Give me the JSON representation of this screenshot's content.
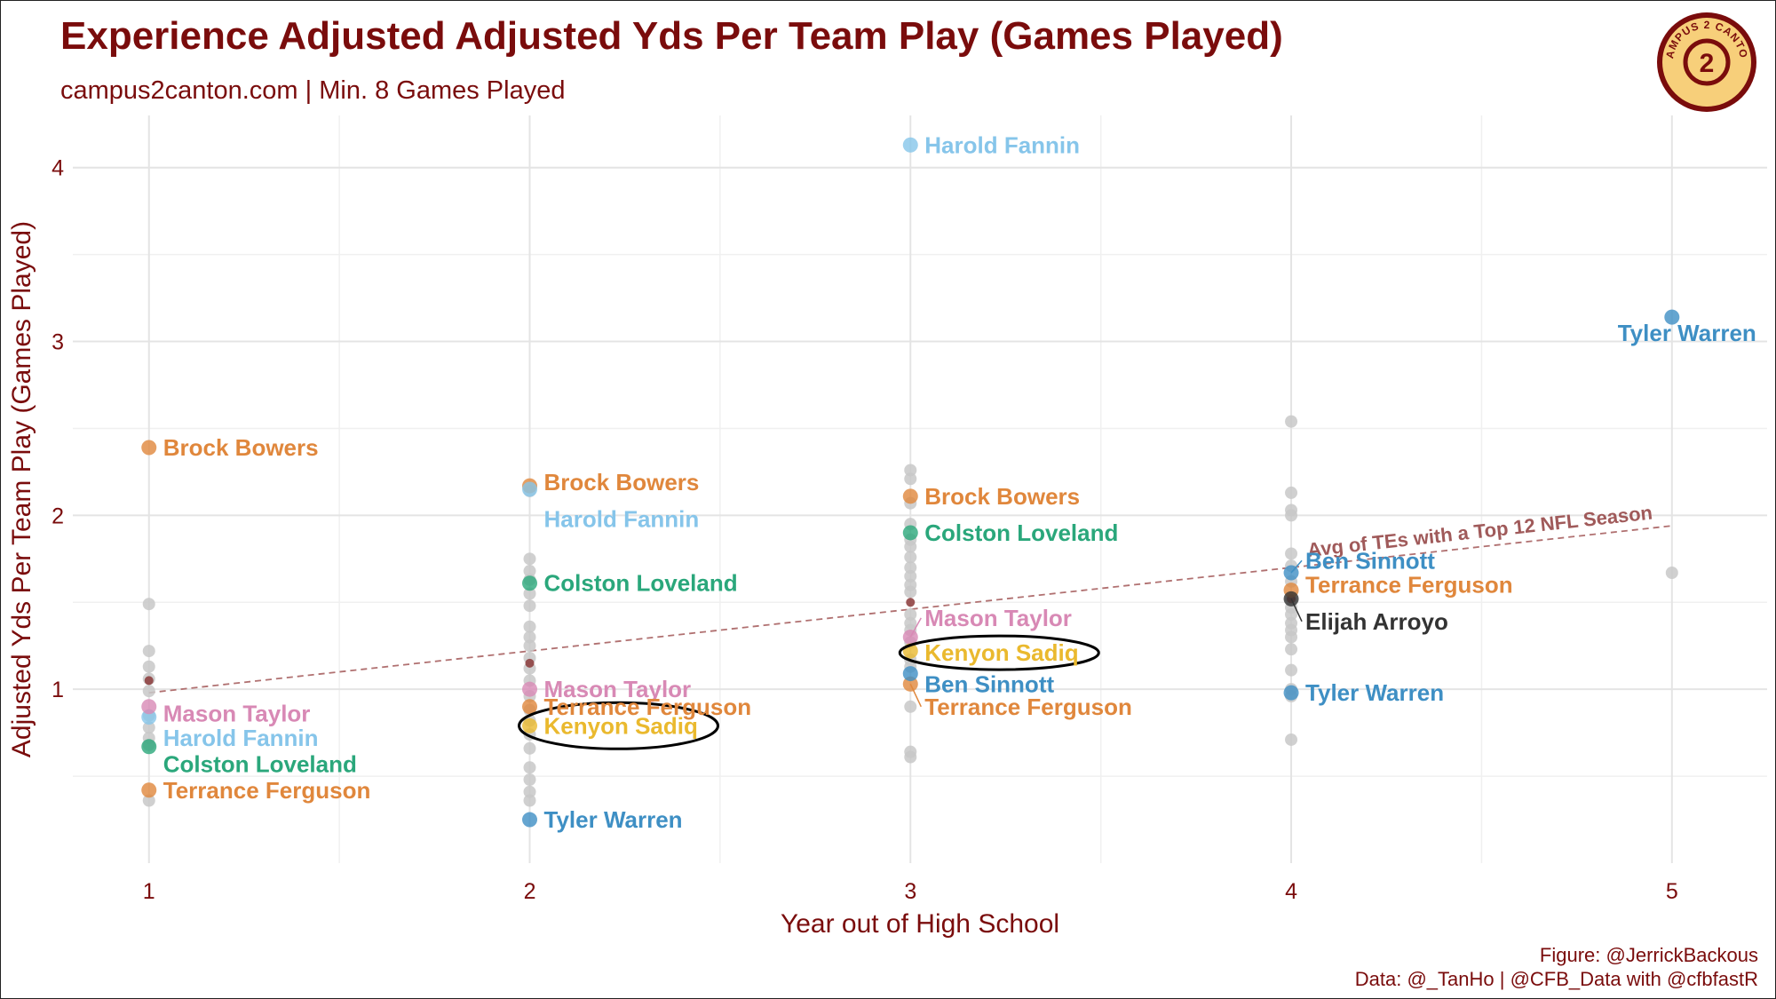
{
  "title": "Experience Adjusted Adjusted Yds Per Team Play (Games Played)",
  "subtitle": "campus2canton.com | Min. 8 Games Played",
  "caption_line1": "Figure: @JerrickBackous",
  "caption_line2": "Data: @_TanHo | @CFB_Data with @cfbfastR",
  "logo_text": "CAMPUS 2 CANTON",
  "colors": {
    "title": "#7a0c0c",
    "background_points": "#c8c8c8",
    "trend": "#b07070",
    "logo_fill": "#f7cf7a",
    "logo_ring": "#7a0c0c",
    "players": {
      "Brock Bowers": "#e0873c",
      "Harold Fannin": "#86c5ea",
      "Colston Loveland": "#2aa77b",
      "Mason Taylor": "#d889b5",
      "Terrance Ferguson": "#e0873c",
      "Kenyon Sadiq": "#eab92e",
      "Tyler Warren": "#3e8fc4",
      "Ben Sinnott": "#3e8fc4",
      "Elijah Arroyo": "#333333"
    }
  },
  "chart_data": {
    "type": "scatter",
    "title": "Experience Adjusted Adjusted Yds Per Team Play (Games Played)",
    "xlabel": "Year out of High School",
    "ylabel": "Adjusted Yds Per Team Play (Games Played)",
    "xlim": [
      0.8,
      5.25
    ],
    "ylim": [
      0.0,
      4.3
    ],
    "xticks": [
      1,
      2,
      3,
      4,
      5
    ],
    "yticks": [
      1,
      2,
      3,
      4
    ],
    "grid": true,
    "background_points": [
      {
        "x": 1,
        "y": 1.49
      },
      {
        "x": 1,
        "y": 1.22
      },
      {
        "x": 1,
        "y": 1.13
      },
      {
        "x": 1,
        "y": 1.06
      },
      {
        "x": 1,
        "y": 0.99
      },
      {
        "x": 1,
        "y": 0.85
      },
      {
        "x": 1,
        "y": 0.78
      },
      {
        "x": 1,
        "y": 0.72
      },
      {
        "x": 1,
        "y": 0.68
      },
      {
        "x": 1,
        "y": 0.36
      },
      {
        "x": 2,
        "y": 2.14
      },
      {
        "x": 2,
        "y": 1.75
      },
      {
        "x": 2,
        "y": 1.68
      },
      {
        "x": 2,
        "y": 1.63
      },
      {
        "x": 2,
        "y": 1.55
      },
      {
        "x": 2,
        "y": 1.48
      },
      {
        "x": 2,
        "y": 1.36
      },
      {
        "x": 2,
        "y": 1.3
      },
      {
        "x": 2,
        "y": 1.25
      },
      {
        "x": 2,
        "y": 1.18
      },
      {
        "x": 2,
        "y": 1.12
      },
      {
        "x": 2,
        "y": 1.05
      },
      {
        "x": 2,
        "y": 0.96
      },
      {
        "x": 2,
        "y": 0.88
      },
      {
        "x": 2,
        "y": 0.82
      },
      {
        "x": 2,
        "y": 0.74
      },
      {
        "x": 2,
        "y": 0.66
      },
      {
        "x": 2,
        "y": 0.55
      },
      {
        "x": 2,
        "y": 0.48
      },
      {
        "x": 2,
        "y": 0.41
      },
      {
        "x": 2,
        "y": 0.36
      },
      {
        "x": 3,
        "y": 2.26
      },
      {
        "x": 3,
        "y": 2.21
      },
      {
        "x": 3,
        "y": 2.07
      },
      {
        "x": 3,
        "y": 1.95
      },
      {
        "x": 3,
        "y": 1.86
      },
      {
        "x": 3,
        "y": 1.82
      },
      {
        "x": 3,
        "y": 1.76
      },
      {
        "x": 3,
        "y": 1.7
      },
      {
        "x": 3,
        "y": 1.65
      },
      {
        "x": 3,
        "y": 1.6
      },
      {
        "x": 3,
        "y": 1.56
      },
      {
        "x": 3,
        "y": 1.43
      },
      {
        "x": 3,
        "y": 1.38
      },
      {
        "x": 3,
        "y": 1.34
      },
      {
        "x": 3,
        "y": 1.27
      },
      {
        "x": 3,
        "y": 1.17
      },
      {
        "x": 3,
        "y": 1.13
      },
      {
        "x": 3,
        "y": 0.9
      },
      {
        "x": 3,
        "y": 0.64
      },
      {
        "x": 3,
        "y": 0.61
      },
      {
        "x": 4,
        "y": 2.54
      },
      {
        "x": 4,
        "y": 2.13
      },
      {
        "x": 4,
        "y": 2.03
      },
      {
        "x": 4,
        "y": 2.0
      },
      {
        "x": 4,
        "y": 1.78
      },
      {
        "x": 4,
        "y": 1.71
      },
      {
        "x": 4,
        "y": 1.62
      },
      {
        "x": 4,
        "y": 1.52
      },
      {
        "x": 4,
        "y": 1.47
      },
      {
        "x": 4,
        "y": 1.43
      },
      {
        "x": 4,
        "y": 1.38
      },
      {
        "x": 4,
        "y": 1.34
      },
      {
        "x": 4,
        "y": 1.3
      },
      {
        "x": 4,
        "y": 1.23
      },
      {
        "x": 4,
        "y": 1.11
      },
      {
        "x": 4,
        "y": 1.0
      },
      {
        "x": 4,
        "y": 0.96
      },
      {
        "x": 4,
        "y": 0.71
      },
      {
        "x": 5,
        "y": 1.67
      }
    ],
    "average_points": [
      {
        "x": 1,
        "y": 1.05
      },
      {
        "x": 2,
        "y": 1.15
      },
      {
        "x": 3,
        "y": 1.5
      },
      {
        "x": 4,
        "y": 1.52
      }
    ],
    "trend_line": {
      "label": "Avg of TEs with a Top 12 NFL Season",
      "x": [
        1,
        5
      ],
      "y": [
        0.98,
        1.94
      ]
    },
    "series": [
      {
        "name": "Brock Bowers",
        "points": [
          {
            "x": 1,
            "y": 2.39
          },
          {
            "x": 2,
            "y": 2.17
          },
          {
            "x": 3,
            "y": 2.11
          }
        ]
      },
      {
        "name": "Harold Fannin",
        "points": [
          {
            "x": 1,
            "y": 0.84
          },
          {
            "x": 2,
            "y": 2.15
          },
          {
            "x": 3,
            "y": 4.13
          }
        ]
      },
      {
        "name": "Colston Loveland",
        "points": [
          {
            "x": 1,
            "y": 0.67
          },
          {
            "x": 2,
            "y": 1.61
          },
          {
            "x": 3,
            "y": 1.9
          }
        ]
      },
      {
        "name": "Mason Taylor",
        "points": [
          {
            "x": 1,
            "y": 0.9
          },
          {
            "x": 2,
            "y": 1.0
          },
          {
            "x": 3,
            "y": 1.3
          }
        ]
      },
      {
        "name": "Terrance Ferguson",
        "points": [
          {
            "x": 1,
            "y": 0.42
          },
          {
            "x": 2,
            "y": 0.9
          },
          {
            "x": 3,
            "y": 1.03
          },
          {
            "x": 4,
            "y": 1.57
          }
        ]
      },
      {
        "name": "Kenyon Sadiq",
        "points": [
          {
            "x": 2,
            "y": 0.79
          },
          {
            "x": 3,
            "y": 1.22
          }
        ]
      },
      {
        "name": "Tyler Warren",
        "points": [
          {
            "x": 2,
            "y": 0.25
          },
          {
            "x": 4,
            "y": 0.98
          },
          {
            "x": 5,
            "y": 3.14
          }
        ]
      },
      {
        "name": "Ben Sinnott",
        "points": [
          {
            "x": 3,
            "y": 1.09
          },
          {
            "x": 4,
            "y": 1.67
          }
        ]
      },
      {
        "name": "Elijah Arroyo",
        "points": [
          {
            "x": 4,
            "y": 1.52
          }
        ]
      }
    ],
    "annotations": [
      {
        "type": "ellipse",
        "target": "Kenyon Sadiq",
        "x": 2
      },
      {
        "type": "ellipse",
        "target": "Kenyon Sadiq",
        "x": 3
      }
    ]
  }
}
